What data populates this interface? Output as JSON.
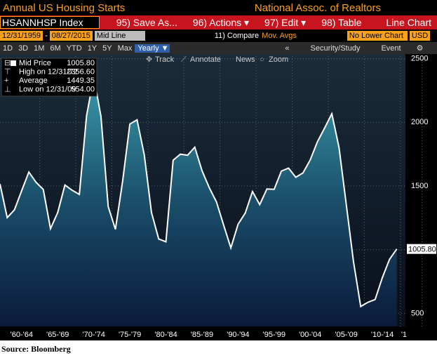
{
  "header": {
    "title": "Annual US Housing Starts",
    "source_name": "National Assoc. of Realtors"
  },
  "menu": {
    "ticker": "HSANNHSP Index",
    "items": [
      "95) Save As...",
      "96) Actions ▾",
      "97) Edit ▾",
      "98) Table"
    ],
    "chart_kind": "Line Chart"
  },
  "fields": {
    "start": "12/31/1959",
    "dash": "-",
    "end": "08/27/2015",
    "price": "Mid Line",
    "compare": "11) Compare",
    "overlay": "Mov. Avgs",
    "lower": "No Lower Chart",
    "currency": "USD"
  },
  "periods": {
    "items": [
      "1D",
      "3D",
      "1M",
      "6M",
      "YTD",
      "1Y",
      "5Y",
      "Max"
    ],
    "frequency": "Yearly ▼",
    "collapse": "«",
    "study": "Security/Study",
    "event": "Event"
  },
  "tools": [
    "Track",
    "Annotate",
    "News",
    "Zoom"
  ],
  "footer": {
    "source": "Source: Bloomberg"
  },
  "chart_data": {
    "type": "area",
    "legend": [
      {
        "name": "Mid Price",
        "value": "1005.80"
      },
      {
        "name": "High on 12/31/72",
        "value": "2356.60"
      },
      {
        "name": "Average",
        "value": "1449.35"
      },
      {
        "name": "Low on 12/31/09",
        "value": "554.00"
      }
    ],
    "x": [
      1959,
      1960,
      1961,
      1962,
      1963,
      1964,
      1965,
      1966,
      1967,
      1968,
      1969,
      1970,
      1971,
      1972,
      1973,
      1974,
      1975,
      1976,
      1977,
      1978,
      1979,
      1980,
      1981,
      1982,
      1983,
      1984,
      1985,
      1986,
      1987,
      1988,
      1989,
      1990,
      1991,
      1992,
      1993,
      1994,
      1995,
      1996,
      1997,
      1998,
      1999,
      2000,
      2001,
      2002,
      2003,
      2004,
      2005,
      2006,
      2007,
      2008,
      2009,
      2010,
      2011,
      2012,
      2013,
      2014
    ],
    "series": [
      {
        "name": "Mid Price",
        "color": "#ffffff",
        "values": [
          1517,
          1252,
          1313,
          1463,
          1610,
          1529,
          1473,
          1165,
          1292,
          1508,
          1467,
          1434,
          2052,
          2356.6,
          2045,
          1338,
          1160,
          1538,
          1987,
          2020,
          1745,
          1292,
          1084,
          1062,
          1703,
          1750,
          1742,
          1805,
          1621,
          1488,
          1376,
          1193,
          1014,
          1200,
          1288,
          1457,
          1354,
          1477,
          1474,
          1617,
          1641,
          1569,
          1603,
          1705,
          1848,
          1956,
          2068,
          1801,
          1355,
          906,
          554,
          587,
          609,
          781,
          925,
          1005.8
        ],
        "value_labels": [
          null,
          null,
          null,
          null,
          null,
          null,
          null,
          null,
          null,
          null,
          null,
          null,
          null,
          null,
          null,
          null,
          null,
          null,
          null,
          null,
          null,
          null,
          null,
          null,
          null,
          null,
          null,
          null,
          null,
          null,
          null,
          null,
          null,
          null,
          null,
          null,
          null,
          null,
          null,
          null,
          null,
          null,
          null,
          null,
          null,
          null,
          null,
          null,
          null,
          null,
          null,
          null,
          null,
          null,
          null,
          "1005.80"
        ]
      }
    ],
    "xlim": [
      1959,
      2015.2
    ],
    "xticks": [
      {
        "value": 1962,
        "label": "'60-'64"
      },
      {
        "value": 1967,
        "label": "'65-'69"
      },
      {
        "value": 1972,
        "label": "'70-'74"
      },
      {
        "value": 1977,
        "label": "'75-'79"
      },
      {
        "value": 1982,
        "label": "'80-'84"
      },
      {
        "value": 1987,
        "label": "'85-'89"
      },
      {
        "value": 1992,
        "label": "'90-'94"
      },
      {
        "value": 1997,
        "label": "'95-'99"
      },
      {
        "value": 2002,
        "label": "'00-'04"
      },
      {
        "value": 2007,
        "label": "'05-'09"
      },
      {
        "value": 2012,
        "label": "'10-'14"
      },
      {
        "value": 2015,
        "label": "'1"
      }
    ],
    "ylim": [
      370,
      2520
    ],
    "yticks": [
      500,
      1000,
      1500,
      2000,
      2500
    ],
    "grid": true
  }
}
